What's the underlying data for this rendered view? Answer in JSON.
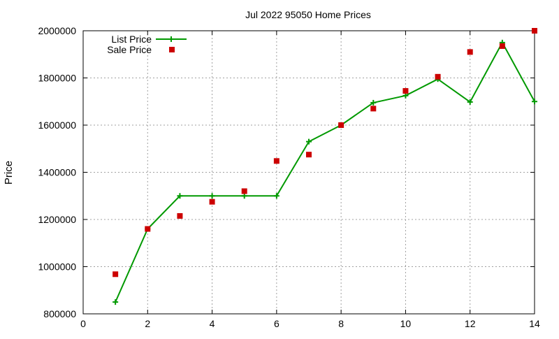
{
  "chart_data": {
    "type": "line",
    "title": "Jul 2022 95050 Home Prices",
    "xlabel": "",
    "ylabel": "Price",
    "xlim": [
      0,
      14
    ],
    "ylim": [
      800000,
      2000000
    ],
    "x_ticks": [
      "0",
      "2",
      "4",
      "6",
      "8",
      "10",
      "12",
      "14"
    ],
    "y_ticks": [
      "800000",
      "1000000",
      "1200000",
      "1400000",
      "1600000",
      "1800000",
      "2000000"
    ],
    "grid": true,
    "legend_position": "top-left",
    "series": [
      {
        "name": "List Price",
        "style": "line-with-plus-markers",
        "color": "#009900",
        "points": [
          [
            1,
            850000
          ],
          [
            2,
            1160000
          ],
          [
            3,
            1300000
          ],
          [
            4,
            1300000
          ],
          [
            5,
            1300000
          ],
          [
            6,
            1300000
          ],
          [
            7,
            1530000
          ],
          [
            8,
            1600000
          ],
          [
            9,
            1695000
          ],
          [
            10,
            1725000
          ],
          [
            11,
            1795000
          ],
          [
            12,
            1698000
          ],
          [
            13,
            1950000
          ],
          [
            14,
            1700000
          ]
        ]
      },
      {
        "name": "Sale Price",
        "style": "square-markers",
        "color": "#cc0000",
        "points": [
          [
            1,
            968000
          ],
          [
            2,
            1160000
          ],
          [
            3,
            1215000
          ],
          [
            4,
            1275000
          ],
          [
            5,
            1320000
          ],
          [
            6,
            1448000
          ],
          [
            7,
            1475000
          ],
          [
            8,
            1600000
          ],
          [
            9,
            1670000
          ],
          [
            10,
            1745000
          ],
          [
            11,
            1805000
          ],
          [
            12,
            1910000
          ],
          [
            13,
            1935000
          ],
          [
            14,
            2000000
          ]
        ]
      }
    ]
  }
}
